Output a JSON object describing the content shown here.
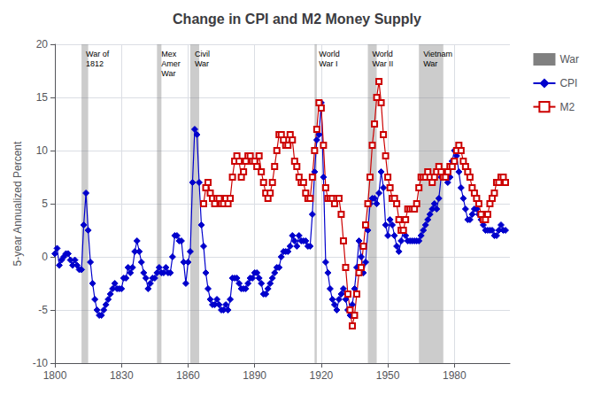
{
  "chart_data": {
    "type": "line",
    "title": "Change in CPI and M2 Money Supply",
    "ylabel": "5-year Annualized Percent",
    "x": [
      1800,
      1801,
      1802,
      1803,
      1804,
      1805,
      1806,
      1807,
      1808,
      1809,
      1810,
      1811,
      1812,
      1813,
      1814,
      1815,
      1816,
      1817,
      1818,
      1819,
      1820,
      1821,
      1822,
      1823,
      1824,
      1825,
      1826,
      1827,
      1828,
      1829,
      1830,
      1831,
      1832,
      1833,
      1834,
      1835,
      1836,
      1837,
      1838,
      1839,
      1840,
      1841,
      1842,
      1843,
      1844,
      1845,
      1846,
      1847,
      1848,
      1849,
      1850,
      1851,
      1852,
      1853,
      1854,
      1855,
      1856,
      1857,
      1858,
      1859,
      1860,
      1861,
      1862,
      1863,
      1864,
      1865,
      1866,
      1867,
      1868,
      1869,
      1870,
      1871,
      1872,
      1873,
      1874,
      1875,
      1876,
      1877,
      1878,
      1879,
      1880,
      1881,
      1882,
      1883,
      1884,
      1885,
      1886,
      1887,
      1888,
      1889,
      1890,
      1891,
      1892,
      1893,
      1894,
      1895,
      1896,
      1897,
      1898,
      1899,
      1900,
      1901,
      1902,
      1903,
      1904,
      1905,
      1906,
      1907,
      1908,
      1909,
      1910,
      1911,
      1912,
      1913,
      1914,
      1915,
      1916,
      1917,
      1918,
      1919,
      1920,
      1921,
      1922,
      1923,
      1924,
      1925,
      1926,
      1927,
      1928,
      1929,
      1930,
      1931,
      1932,
      1933,
      1934,
      1935,
      1936,
      1937,
      1938,
      1939,
      1940,
      1941,
      1942,
      1943,
      1944,
      1945,
      1946,
      1947,
      1948,
      1949,
      1950,
      1951,
      1952,
      1953,
      1954,
      1955,
      1956,
      1957,
      1958,
      1959,
      1960,
      1961,
      1962,
      1963,
      1964,
      1965,
      1966,
      1967,
      1968,
      1969,
      1970,
      1971,
      1972,
      1973,
      1974,
      1975,
      1976,
      1977,
      1978,
      1979,
      1980,
      1981,
      1982,
      1983,
      1984,
      1985,
      1986,
      1987,
      1988,
      1989,
      1990,
      1991,
      1992,
      1993,
      1994,
      1995,
      1996,
      1997,
      1998,
      1999,
      2000,
      2001,
      2002,
      2003
    ],
    "series": [
      {
        "name": "War",
        "type": "span",
        "color": "#808080",
        "spans": [
          {
            "start": 1812,
            "end": 1815,
            "label": "War of\n1812"
          },
          {
            "start": 1846,
            "end": 1848,
            "label": "Mex\nAmer\nWar"
          },
          {
            "start": 1861,
            "end": 1865,
            "label": "Civil\nWar"
          },
          {
            "start": 1917,
            "end": 1918,
            "label": "World\nWar I"
          },
          {
            "start": 1941,
            "end": 1945,
            "label": "World\nWar II"
          },
          {
            "start": 1964,
            "end": 1975,
            "label": "Vietnam\nWar"
          }
        ]
      },
      {
        "name": "CPI",
        "type": "line",
        "color": "#0000cc",
        "marker": "diamond",
        "values": [
          0.3,
          0.8,
          -0.8,
          -0.3,
          0.0,
          0.3,
          0.3,
          -0.3,
          -0.8,
          -0.3,
          -0.8,
          -1.2,
          -1.2,
          3.0,
          6.0,
          2.5,
          -0.5,
          -2.5,
          -4.0,
          -5.0,
          -5.5,
          -5.5,
          -5.0,
          -4.5,
          -4.0,
          -3.5,
          -3.0,
          -2.5,
          -3.0,
          -3.0,
          -3.0,
          -2.0,
          -2.0,
          -1.0,
          -1.5,
          -1.0,
          0.5,
          1.5,
          0.5,
          -0.5,
          -1.5,
          -2.0,
          -3.0,
          -2.5,
          -2.0,
          -2.0,
          -1.5,
          -1.0,
          -1.5,
          -1.5,
          -1.0,
          -1.5,
          -1.5,
          0.0,
          2.0,
          2.0,
          1.5,
          1.5,
          -0.5,
          -2.5,
          -0.5,
          0.5,
          7.0,
          12.0,
          11.5,
          7.0,
          3.0,
          1.0,
          -1.5,
          -3.0,
          -4.0,
          -4.5,
          -4.5,
          -4.0,
          -4.5,
          -5.0,
          -5.0,
          -4.5,
          -5.0,
          -4.0,
          -2.0,
          -2.0,
          -2.0,
          -2.5,
          -3.0,
          -3.0,
          -3.0,
          -2.5,
          -2.0,
          -2.0,
          -1.5,
          -1.5,
          -2.0,
          -2.5,
          -3.5,
          -3.5,
          -3.0,
          -2.5,
          -2.0,
          -1.5,
          -1.0,
          -1.0,
          0.0,
          0.5,
          0.5,
          0.5,
          1.0,
          2.0,
          1.5,
          1.0,
          2.0,
          1.5,
          1.5,
          1.5,
          1.0,
          1.0,
          4.0,
          8.0,
          11.0,
          11.5,
          14.5,
          7.5,
          -0.5,
          -1.5,
          -3.0,
          -4.0,
          -4.5,
          -5.0,
          -4.0,
          -3.5,
          -3.0,
          -4.0,
          -5.0,
          -5.5,
          -4.5,
          -3.0,
          -1.0,
          1.5,
          0.0,
          -1.5,
          -0.5,
          2.5,
          5.0,
          5.5,
          5.5,
          5.0,
          6.0,
          8.0,
          6.5,
          3.0,
          2.0,
          3.5,
          3.0,
          2.0,
          1.0,
          0.5,
          1.5,
          2.5,
          2.0,
          1.5,
          1.5,
          1.5,
          1.5,
          1.5,
          1.5,
          2.0,
          2.5,
          3.0,
          3.5,
          4.0,
          4.5,
          5.0,
          4.5,
          5.5,
          7.5,
          8.0,
          7.5,
          7.0,
          7.5,
          9.0,
          10.0,
          9.5,
          8.0,
          6.5,
          5.5,
          4.5,
          3.5,
          3.5,
          4.0,
          4.5,
          4.5,
          4.0,
          3.5,
          3.0,
          2.5,
          2.5,
          2.5,
          2.5,
          2.0,
          2.0,
          2.5,
          3.0,
          2.5,
          2.5
        ]
      },
      {
        "name": "M2",
        "type": "line",
        "color": "#cc0000",
        "marker": "square",
        "values": [
          null,
          null,
          null,
          null,
          null,
          null,
          null,
          null,
          null,
          null,
          null,
          null,
          null,
          null,
          null,
          null,
          null,
          null,
          null,
          null,
          null,
          null,
          null,
          null,
          null,
          null,
          null,
          null,
          null,
          null,
          null,
          null,
          null,
          null,
          null,
          null,
          null,
          null,
          null,
          null,
          null,
          null,
          null,
          null,
          null,
          null,
          null,
          null,
          null,
          null,
          null,
          null,
          null,
          null,
          null,
          null,
          null,
          null,
          null,
          null,
          null,
          null,
          null,
          null,
          null,
          null,
          null,
          5.0,
          6.5,
          7.0,
          6.0,
          5.5,
          5.0,
          5.5,
          5.5,
          5.0,
          5.0,
          5.5,
          5.0,
          5.5,
          7.5,
          9.0,
          9.5,
          9.0,
          7.5,
          8.0,
          9.0,
          9.5,
          9.5,
          9.0,
          9.0,
          8.5,
          9.5,
          8.0,
          7.0,
          6.0,
          5.5,
          6.0,
          7.0,
          8.5,
          10.0,
          11.5,
          11.5,
          11.0,
          10.5,
          10.5,
          11.5,
          11.0,
          9.0,
          8.5,
          7.5,
          7.0,
          7.0,
          6.0,
          5.5,
          5.5,
          7.5,
          10.0,
          12.0,
          14.5,
          14.0,
          10.5,
          6.5,
          5.5,
          5.5,
          5.5,
          5.0,
          5.5,
          5.5,
          4.0,
          1.5,
          -1.0,
          -3.5,
          -5.0,
          -6.5,
          -5.5,
          -3.5,
          -1.5,
          -1.0,
          1.0,
          3.0,
          5.0,
          7.5,
          10.5,
          12.5,
          15.0,
          16.5,
          14.5,
          11.5,
          9.5,
          7.5,
          6.5,
          5.5,
          5.5,
          5.0,
          3.5,
          2.5,
          2.5,
          3.5,
          4.5,
          4.5,
          4.5,
          4.5,
          5.0,
          6.5,
          7.5,
          7.5,
          7.5,
          8.0,
          7.5,
          7.0,
          7.5,
          8.0,
          8.5,
          8.0,
          7.5,
          7.5,
          8.0,
          8.5,
          8.5,
          9.0,
          10.0,
          10.5,
          10.0,
          9.0,
          8.5,
          8.0,
          7.5,
          6.5,
          6.0,
          5.5,
          5.0,
          4.0,
          3.5,
          3.5,
          4.0,
          5.0,
          5.5,
          6.0,
          7.0,
          7.0,
          7.5,
          7.5,
          7.0
        ]
      }
    ],
    "xlim": [
      1800,
      2005
    ],
    "xticks": [
      1800,
      1830,
      1860,
      1890,
      1920,
      1950,
      1980
    ],
    "ylim": [
      -10,
      20
    ],
    "yticks": [
      -10,
      -5,
      0,
      5,
      10,
      15,
      20
    ],
    "grid": true,
    "legend": "right"
  }
}
